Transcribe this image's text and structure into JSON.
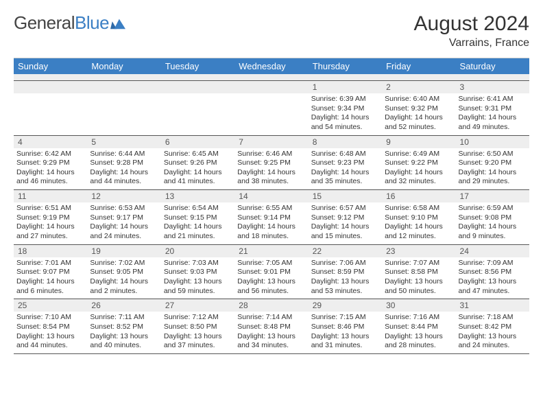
{
  "brand": {
    "part1": "General",
    "part2": "Blue"
  },
  "title": "August 2024",
  "location": "Varrains, France",
  "header_bg": "#3b7fc4",
  "band_bg": "#eeeeee",
  "text_color": "#333333",
  "border_color": "#555555",
  "columns": [
    "Sunday",
    "Monday",
    "Tuesday",
    "Wednesday",
    "Thursday",
    "Friday",
    "Saturday"
  ],
  "weeks": [
    [
      {
        "blank": true
      },
      {
        "blank": true
      },
      {
        "blank": true
      },
      {
        "blank": true
      },
      {
        "day": "1",
        "sunrise": "Sunrise: 6:39 AM",
        "sunset": "Sunset: 9:34 PM",
        "daylight": "Daylight: 14 hours and 54 minutes."
      },
      {
        "day": "2",
        "sunrise": "Sunrise: 6:40 AM",
        "sunset": "Sunset: 9:32 PM",
        "daylight": "Daylight: 14 hours and 52 minutes."
      },
      {
        "day": "3",
        "sunrise": "Sunrise: 6:41 AM",
        "sunset": "Sunset: 9:31 PM",
        "daylight": "Daylight: 14 hours and 49 minutes."
      }
    ],
    [
      {
        "day": "4",
        "sunrise": "Sunrise: 6:42 AM",
        "sunset": "Sunset: 9:29 PM",
        "daylight": "Daylight: 14 hours and 46 minutes."
      },
      {
        "day": "5",
        "sunrise": "Sunrise: 6:44 AM",
        "sunset": "Sunset: 9:28 PM",
        "daylight": "Daylight: 14 hours and 44 minutes."
      },
      {
        "day": "6",
        "sunrise": "Sunrise: 6:45 AM",
        "sunset": "Sunset: 9:26 PM",
        "daylight": "Daylight: 14 hours and 41 minutes."
      },
      {
        "day": "7",
        "sunrise": "Sunrise: 6:46 AM",
        "sunset": "Sunset: 9:25 PM",
        "daylight": "Daylight: 14 hours and 38 minutes."
      },
      {
        "day": "8",
        "sunrise": "Sunrise: 6:48 AM",
        "sunset": "Sunset: 9:23 PM",
        "daylight": "Daylight: 14 hours and 35 minutes."
      },
      {
        "day": "9",
        "sunrise": "Sunrise: 6:49 AM",
        "sunset": "Sunset: 9:22 PM",
        "daylight": "Daylight: 14 hours and 32 minutes."
      },
      {
        "day": "10",
        "sunrise": "Sunrise: 6:50 AM",
        "sunset": "Sunset: 9:20 PM",
        "daylight": "Daylight: 14 hours and 29 minutes."
      }
    ],
    [
      {
        "day": "11",
        "sunrise": "Sunrise: 6:51 AM",
        "sunset": "Sunset: 9:19 PM",
        "daylight": "Daylight: 14 hours and 27 minutes."
      },
      {
        "day": "12",
        "sunrise": "Sunrise: 6:53 AM",
        "sunset": "Sunset: 9:17 PM",
        "daylight": "Daylight: 14 hours and 24 minutes."
      },
      {
        "day": "13",
        "sunrise": "Sunrise: 6:54 AM",
        "sunset": "Sunset: 9:15 PM",
        "daylight": "Daylight: 14 hours and 21 minutes."
      },
      {
        "day": "14",
        "sunrise": "Sunrise: 6:55 AM",
        "sunset": "Sunset: 9:14 PM",
        "daylight": "Daylight: 14 hours and 18 minutes."
      },
      {
        "day": "15",
        "sunrise": "Sunrise: 6:57 AM",
        "sunset": "Sunset: 9:12 PM",
        "daylight": "Daylight: 14 hours and 15 minutes."
      },
      {
        "day": "16",
        "sunrise": "Sunrise: 6:58 AM",
        "sunset": "Sunset: 9:10 PM",
        "daylight": "Daylight: 14 hours and 12 minutes."
      },
      {
        "day": "17",
        "sunrise": "Sunrise: 6:59 AM",
        "sunset": "Sunset: 9:08 PM",
        "daylight": "Daylight: 14 hours and 9 minutes."
      }
    ],
    [
      {
        "day": "18",
        "sunrise": "Sunrise: 7:01 AM",
        "sunset": "Sunset: 9:07 PM",
        "daylight": "Daylight: 14 hours and 6 minutes."
      },
      {
        "day": "19",
        "sunrise": "Sunrise: 7:02 AM",
        "sunset": "Sunset: 9:05 PM",
        "daylight": "Daylight: 14 hours and 2 minutes."
      },
      {
        "day": "20",
        "sunrise": "Sunrise: 7:03 AM",
        "sunset": "Sunset: 9:03 PM",
        "daylight": "Daylight: 13 hours and 59 minutes."
      },
      {
        "day": "21",
        "sunrise": "Sunrise: 7:05 AM",
        "sunset": "Sunset: 9:01 PM",
        "daylight": "Daylight: 13 hours and 56 minutes."
      },
      {
        "day": "22",
        "sunrise": "Sunrise: 7:06 AM",
        "sunset": "Sunset: 8:59 PM",
        "daylight": "Daylight: 13 hours and 53 minutes."
      },
      {
        "day": "23",
        "sunrise": "Sunrise: 7:07 AM",
        "sunset": "Sunset: 8:58 PM",
        "daylight": "Daylight: 13 hours and 50 minutes."
      },
      {
        "day": "24",
        "sunrise": "Sunrise: 7:09 AM",
        "sunset": "Sunset: 8:56 PM",
        "daylight": "Daylight: 13 hours and 47 minutes."
      }
    ],
    [
      {
        "day": "25",
        "sunrise": "Sunrise: 7:10 AM",
        "sunset": "Sunset: 8:54 PM",
        "daylight": "Daylight: 13 hours and 44 minutes."
      },
      {
        "day": "26",
        "sunrise": "Sunrise: 7:11 AM",
        "sunset": "Sunset: 8:52 PM",
        "daylight": "Daylight: 13 hours and 40 minutes."
      },
      {
        "day": "27",
        "sunrise": "Sunrise: 7:12 AM",
        "sunset": "Sunset: 8:50 PM",
        "daylight": "Daylight: 13 hours and 37 minutes."
      },
      {
        "day": "28",
        "sunrise": "Sunrise: 7:14 AM",
        "sunset": "Sunset: 8:48 PM",
        "daylight": "Daylight: 13 hours and 34 minutes."
      },
      {
        "day": "29",
        "sunrise": "Sunrise: 7:15 AM",
        "sunset": "Sunset: 8:46 PM",
        "daylight": "Daylight: 13 hours and 31 minutes."
      },
      {
        "day": "30",
        "sunrise": "Sunrise: 7:16 AM",
        "sunset": "Sunset: 8:44 PM",
        "daylight": "Daylight: 13 hours and 28 minutes."
      },
      {
        "day": "31",
        "sunrise": "Sunrise: 7:18 AM",
        "sunset": "Sunset: 8:42 PM",
        "daylight": "Daylight: 13 hours and 24 minutes."
      }
    ]
  ]
}
